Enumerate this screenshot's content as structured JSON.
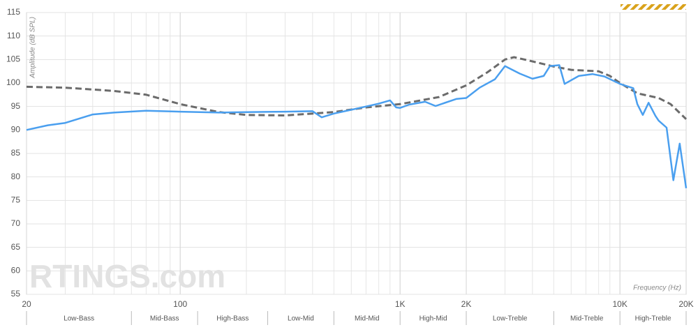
{
  "chart_data": {
    "type": "line",
    "y_label": "Amplitude (dB SPL)",
    "x_label": "Frequency (Hz)",
    "watermark": "RTINGS.com",
    "xscale": "log",
    "grid": true,
    "xlim": [
      20,
      20000
    ],
    "xticks": [
      20,
      100,
      {
        "value": 1000,
        "label": "1K"
      },
      {
        "value": 2000,
        "label": "2K"
      },
      {
        "value": 10000,
        "label": "10K"
      },
      {
        "value": 20000,
        "label": "20K"
      }
    ],
    "ylim": [
      55,
      115
    ],
    "yticks": [
      55,
      60,
      65,
      70,
      75,
      80,
      85,
      90,
      95,
      100,
      105,
      110,
      115
    ],
    "bands": [
      {
        "label": "Low-Bass",
        "range": [
          20,
          60
        ]
      },
      {
        "label": "Mid-Bass",
        "range": [
          60,
          120
        ]
      },
      {
        "label": "High-Bass",
        "range": [
          120,
          250
        ]
      },
      {
        "label": "Low-Mid",
        "range": [
          250,
          500
        ]
      },
      {
        "label": "Mid-Mid",
        "range": [
          500,
          1000
        ]
      },
      {
        "label": "High-Mid",
        "range": [
          1000,
          2000
        ]
      },
      {
        "label": "Low-Treble",
        "range": [
          2000,
          5000
        ]
      },
      {
        "label": "Mid-Treble",
        "range": [
          5000,
          10000
        ]
      },
      {
        "label": "High-Treble",
        "range": [
          10000,
          20000
        ]
      }
    ],
    "series": [
      {
        "color": "#6b6b6b",
        "dashed": true,
        "x": [
          20,
          30,
          50,
          70,
          100,
          150,
          200,
          300,
          500,
          700,
          1000,
          1500,
          2000,
          2500,
          3000,
          3300,
          4000,
          5000,
          6000,
          8000,
          9000,
          10000,
          12000,
          15000,
          17000,
          20000
        ],
        "values": [
          99.2,
          99,
          98.3,
          97.5,
          95.5,
          93.8,
          93.2,
          93.1,
          93.8,
          94.8,
          95.5,
          97,
          99.5,
          102.3,
          105,
          105.5,
          104.6,
          103.5,
          102.8,
          102.5,
          101.5,
          100,
          97.8,
          96.8,
          95.5,
          92.3
        ]
      },
      {
        "color": "#4a9fef",
        "dashed": false,
        "x": [
          20,
          25,
          30,
          40,
          50,
          70,
          100,
          150,
          200,
          300,
          400,
          440,
          500,
          600,
          700,
          800,
          900,
          960,
          1000,
          1100,
          1300,
          1450,
          1800,
          2000,
          2300,
          2700,
          3000,
          3500,
          4000,
          4500,
          4800,
          5300,
          5600,
          6500,
          7500,
          8500,
          10000,
          11500,
          12000,
          12700,
          13500,
          14500,
          15000,
          16300,
          17500,
          18700,
          20000
        ],
        "values": [
          90,
          91,
          91.5,
          93.3,
          93.7,
          94.1,
          93.9,
          93.7,
          93.8,
          93.9,
          94,
          92.7,
          93.5,
          94.3,
          95,
          95.6,
          96.3,
          94.8,
          94.7,
          95.4,
          96,
          95.1,
          96.6,
          96.8,
          99,
          100.8,
          103.6,
          102,
          100.9,
          101.5,
          103.6,
          103.8,
          99.8,
          101.5,
          101.9,
          101.4,
          99.8,
          98.9,
          95.5,
          93.2,
          95.8,
          93,
          92,
          90.5,
          79.3,
          87.1,
          77.6
        ]
      }
    ]
  }
}
